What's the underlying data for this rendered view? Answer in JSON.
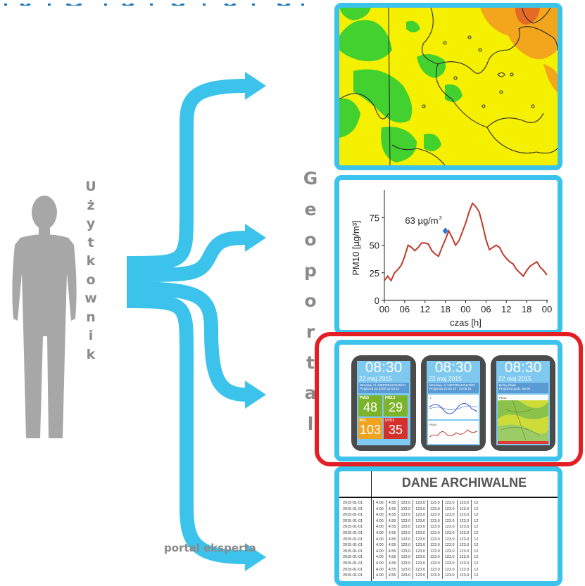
{
  "left_label": {
    "letters": [
      "U",
      "ż",
      "y",
      "t",
      "k",
      "o",
      "w",
      "n",
      "i",
      "k"
    ]
  },
  "center_label": {
    "letters": [
      "G",
      "e",
      "o",
      "p",
      "o",
      "r",
      "t",
      "a",
      "l"
    ]
  },
  "bottom_label": "portal eksperta",
  "colors": {
    "arrow": "#3cc3ec",
    "panel_border": "#3cc3ec",
    "highlight": "#e31e24",
    "person": "#a7a7a7",
    "label_text": "#8a8a8a"
  },
  "icons": [
    "person-silhouette-icon",
    "arrow-right-icon"
  ],
  "chart_data": {
    "type": "line",
    "x": [
      "00",
      "01",
      "02",
      "03",
      "04",
      "05",
      "06",
      "07",
      "08",
      "09",
      "10",
      "11",
      "12",
      "13",
      "14",
      "15",
      "16",
      "17",
      "18",
      "19",
      "20",
      "21",
      "22",
      "23",
      "00",
      "01",
      "02",
      "03",
      "04",
      "05",
      "06",
      "07",
      "08",
      "09",
      "10",
      "11",
      "12",
      "13",
      "14",
      "15",
      "16",
      "17",
      "18",
      "19",
      "20",
      "21",
      "22",
      "23",
      "00"
    ],
    "tick_labels": [
      "00",
      "06",
      "12",
      "18",
      "00",
      "06",
      "12",
      "18",
      "00"
    ],
    "y": [
      18,
      22,
      18,
      25,
      28,
      32,
      40,
      50,
      48,
      45,
      48,
      52,
      52,
      51,
      45,
      42,
      40,
      48,
      55,
      63,
      57,
      50,
      54,
      62,
      70,
      80,
      88,
      85,
      80,
      68,
      55,
      46,
      48,
      50,
      48,
      42,
      38,
      35,
      33,
      28,
      25,
      22,
      27,
      31,
      33,
      35,
      30,
      27,
      23
    ],
    "xlabel": "czas [h]",
    "ylabel": "PM10 [µg/m³]",
    "yticks": [
      "0",
      "25",
      "50",
      "75"
    ],
    "ylim": [
      0,
      95
    ],
    "annotation": {
      "text": "63 µg/m",
      "sup": "3",
      "x_index": 18,
      "y": 63
    },
    "line_color": "#c0392b"
  },
  "watches": [
    {
      "time": "08:30",
      "date": "22 maj 2015",
      "info": [
        "Wrocław, ul. NIEPODLEGŁOŚCI",
        "Prognoza na dzień 22.05.15"
      ],
      "tiles": [
        {
          "label": "PM10",
          "value": "48",
          "color": "#7cb32b"
        },
        {
          "label": "PM2,5",
          "value": "29",
          "color": "#7cb32b"
        },
        {
          "label": "NO₂",
          "value": "103",
          "color": "#f0a320"
        },
        {
          "label": "UTC1",
          "value": "35",
          "color": "#d6302a"
        }
      ]
    },
    {
      "time": "08:30",
      "date": "22 maj 2015",
      "info": [
        "Wrocław, ul. NIEPODLEGŁOŚCI",
        "Prognoza 22.05.15 - 23.05.15"
      ],
      "labels": [
        "T",
        "PM10"
      ]
    },
    {
      "time": "08:30",
      "date": "22 maj 2015",
      "info": [
        "Dolny Śląsk",
        "Prognoza godz. 08:00"
      ],
      "labels": [
        "PM10"
      ]
    }
  ],
  "archive": {
    "title": "DANE ARCHIWALNE",
    "rows": [
      [
        "2015-01-01",
        "4.00",
        "4.55",
        "123.0",
        "123.0",
        "123.0",
        "123.0",
        "123.0",
        "12"
      ],
      [
        "2015-01-01",
        "4.00",
        "4.55",
        "123.0",
        "123.0",
        "123.0",
        "123.0",
        "123.0",
        "12"
      ],
      [
        "2015-01-01",
        "4.00",
        "4.55",
        "123.0",
        "123.0",
        "123.0",
        "123.0",
        "123.0",
        "12"
      ],
      [
        "2015-01-01",
        "4.00",
        "4.55",
        "123.0",
        "123.0",
        "123.0",
        "123.0",
        "123.0",
        "12"
      ],
      [
        "2015-01-01",
        "4.00",
        "4.55",
        "123.0",
        "123.0",
        "123.0",
        "123.0",
        "123.0",
        "12"
      ],
      [
        "2015-01-01",
        "4.00",
        "4.55",
        "123.0",
        "123.0",
        "123.0",
        "123.0",
        "123.0",
        "12"
      ],
      [
        "2015-01-01",
        "4.00",
        "4.55",
        "123.0",
        "123.0",
        "123.0",
        "123.0",
        "123.0",
        "12"
      ],
      [
        "2015-01-01",
        "4.00",
        "4.55",
        "123.0",
        "123.0",
        "123.0",
        "123.0",
        "123.0",
        "12"
      ],
      [
        "2015-01-01",
        "4.00",
        "4.55",
        "123.0",
        "123.0",
        "123.0",
        "123.0",
        "123.0",
        "12"
      ],
      [
        "2015-01-01",
        "4.00",
        "4.55",
        "123.0",
        "123.0",
        "123.0",
        "123.0",
        "123.0",
        "12"
      ],
      [
        "2015-01-01",
        "4.00",
        "4.55",
        "123.0",
        "123.0",
        "123.0",
        "123.0",
        "123.0",
        "12"
      ],
      [
        "2015-01-01",
        "4.00",
        "4.55",
        "123.0",
        "123.0",
        "123.0",
        "123.0",
        "123.0",
        "12"
      ],
      [
        "2015-01-01",
        "4.00",
        "4.55",
        "123.0",
        "123.0",
        "123.0",
        "123.0",
        "123.0",
        "12"
      ]
    ]
  }
}
